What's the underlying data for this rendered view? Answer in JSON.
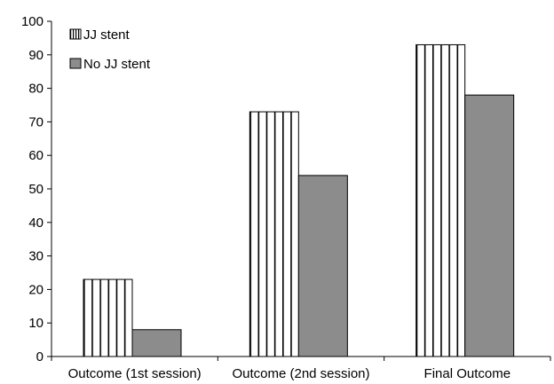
{
  "chart_data": {
    "type": "bar",
    "categories": [
      "Outcome (1st session)",
      "Outcome (2nd session)",
      "Final Outcome"
    ],
    "series": [
      {
        "name": "JJ stent",
        "values": [
          23,
          73,
          93
        ],
        "pattern": "vertical-stripes",
        "color": "#ffffff"
      },
      {
        "name": "No JJ stent",
        "values": [
          8,
          54,
          78
        ],
        "pattern": "solid",
        "color": "#8c8c8c"
      }
    ],
    "title": "",
    "xlabel": "",
    "ylabel": "",
    "ylim": [
      0,
      100
    ],
    "yticks": [
      0,
      10,
      20,
      30,
      40,
      50,
      60,
      70,
      80,
      90,
      100
    ],
    "grid": false,
    "legend": "top-left"
  }
}
